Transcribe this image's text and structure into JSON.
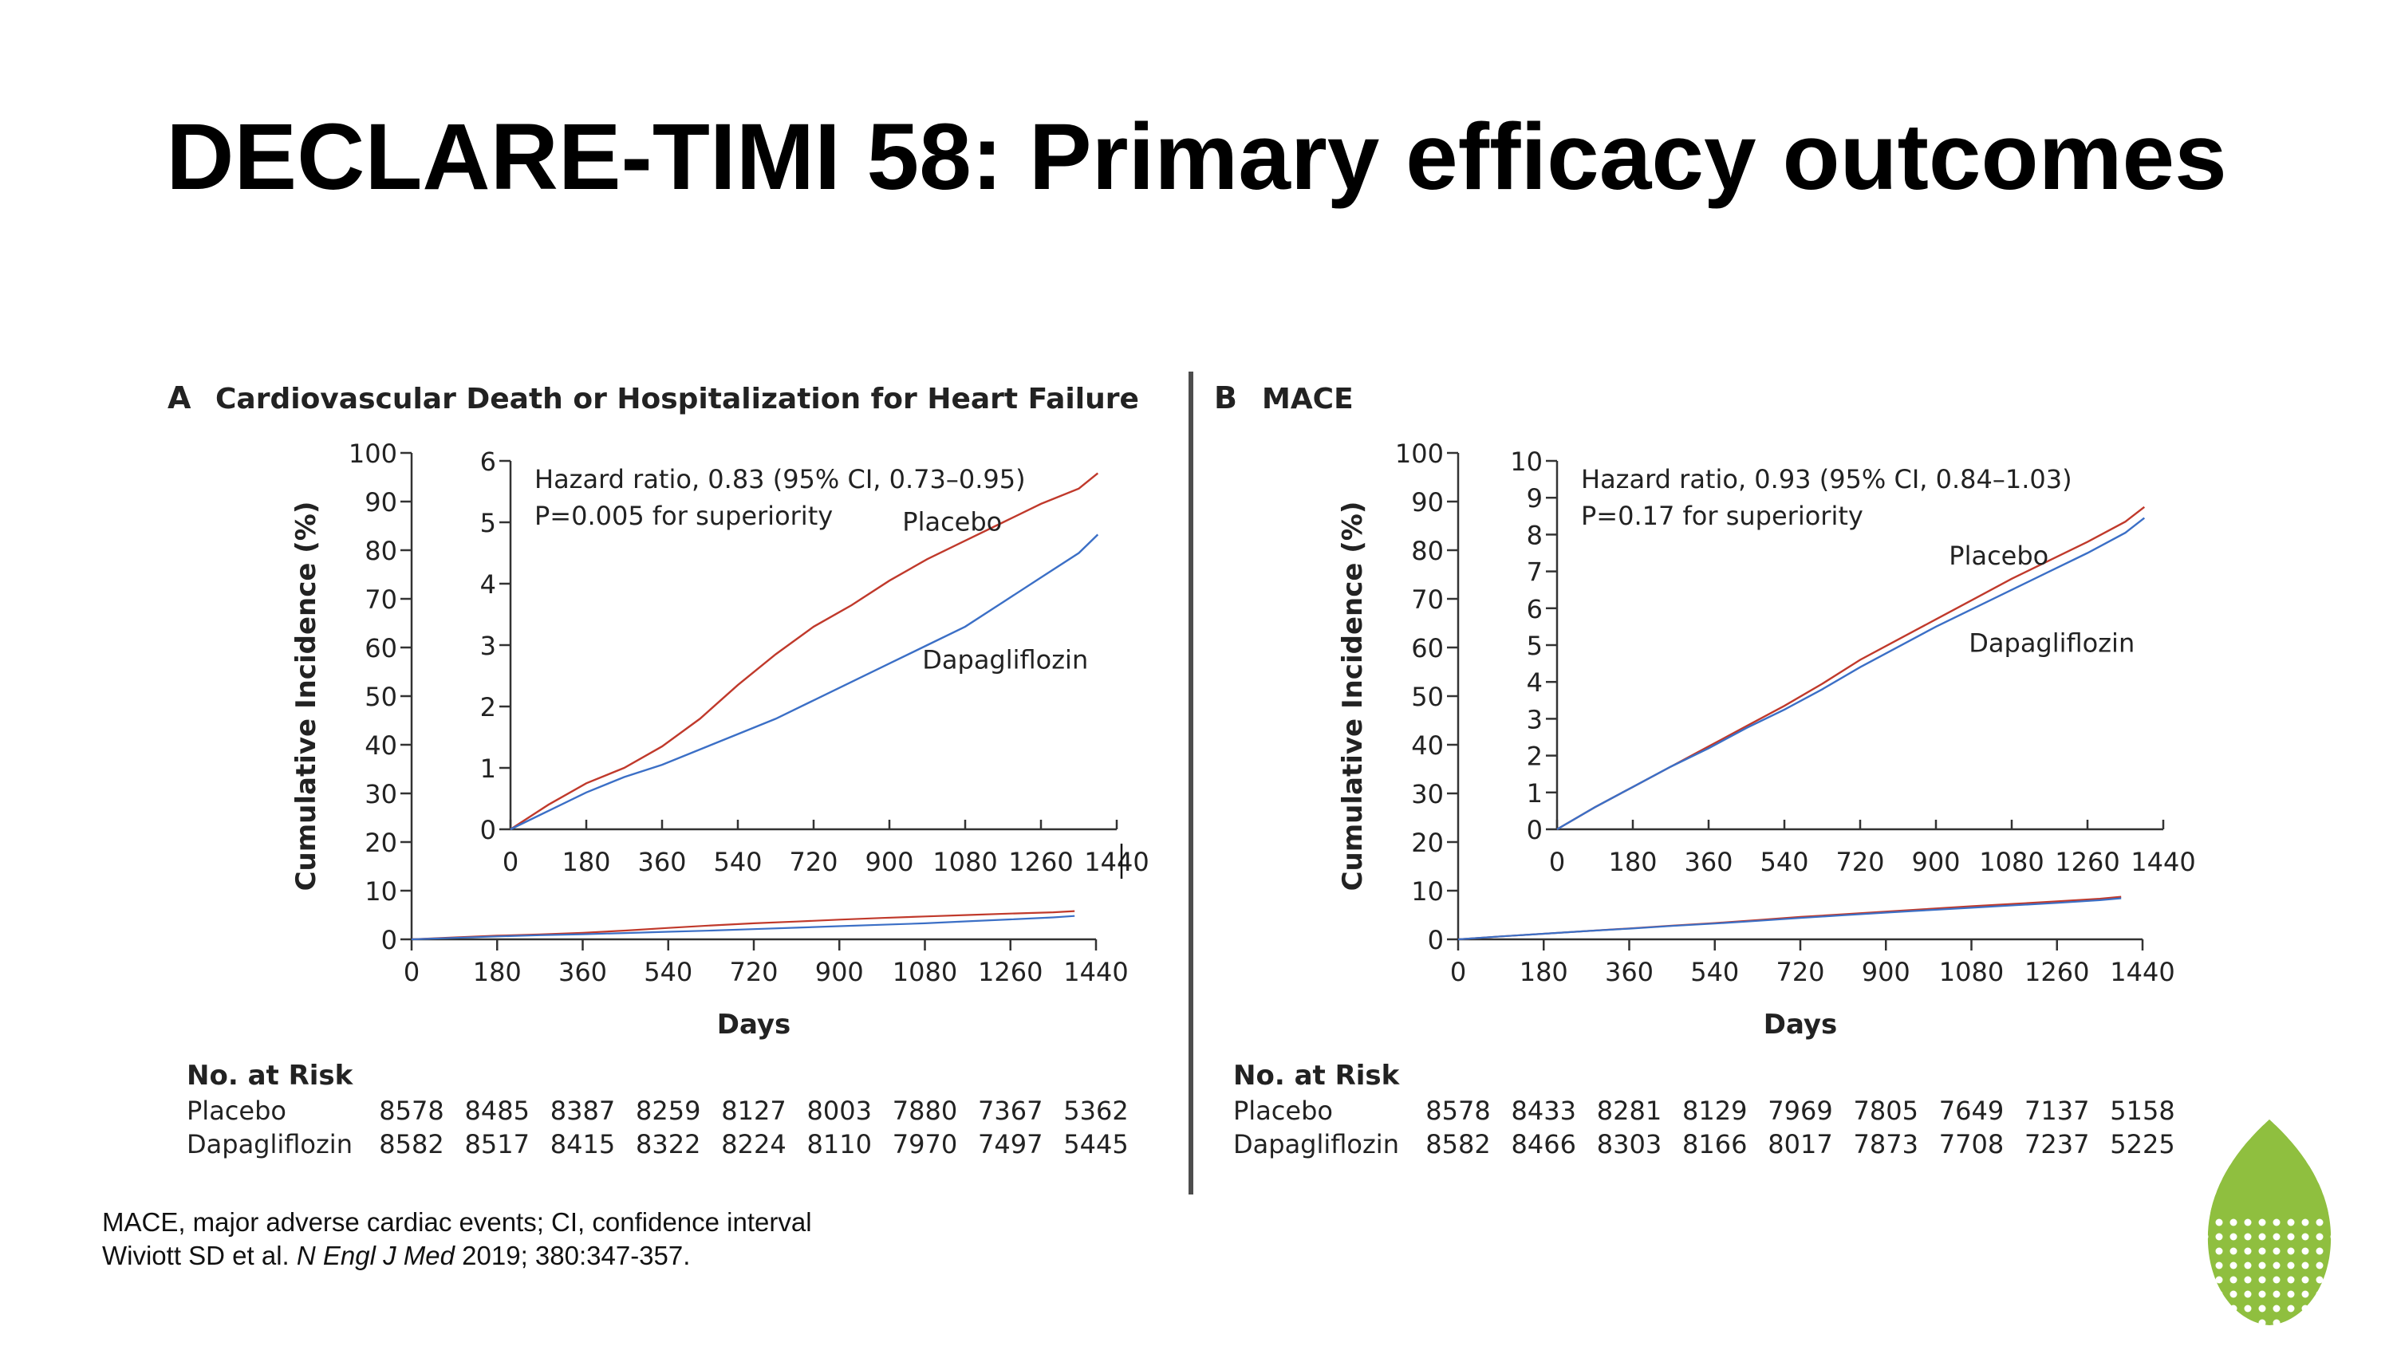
{
  "title": "DECLARE-TIMI 58: Primary efficacy outcomes",
  "colors": {
    "placebo": "#c0392b",
    "dapagliflozin": "#3b6fc6",
    "axis": "#333333",
    "logo": "#8fbf3f"
  },
  "chart_data": [
    {
      "type": "line",
      "panel_letter": "A",
      "title": "Cardiovascular Death or Hospitalization for Heart Failure",
      "xlabel": "Days",
      "ylabel": "Cumulative Incidence (%)",
      "xlim": [
        0,
        1440
      ],
      "ylim": [
        0,
        100
      ],
      "xticks": [
        0,
        180,
        360,
        540,
        720,
        900,
        1080,
        1260,
        1440
      ],
      "yticks": [
        0,
        10,
        20,
        30,
        40,
        50,
        60,
        70,
        80,
        90,
        100
      ],
      "inset": {
        "xlim": [
          0,
          1440
        ],
        "ylim": [
          0,
          6
        ],
        "xticks": [
          0,
          180,
          360,
          540,
          720,
          900,
          1080,
          1260,
          1440
        ],
        "yticks": [
          0,
          1,
          2,
          3,
          4,
          5,
          6
        ],
        "annotation": [
          "Hazard ratio, 0.83 (95% CI, 0.73–0.95)",
          "P=0.005 for superiority"
        ]
      },
      "series": [
        {
          "name": "Placebo",
          "color_key": "placebo",
          "x": [
            0,
            90,
            180,
            270,
            360,
            450,
            540,
            630,
            720,
            810,
            900,
            990,
            1080,
            1170,
            1260,
            1350,
            1395
          ],
          "y": [
            0,
            0.4,
            0.75,
            1.0,
            1.35,
            1.8,
            2.35,
            2.85,
            3.3,
            3.65,
            4.05,
            4.4,
            4.7,
            5.0,
            5.3,
            5.55,
            5.8
          ]
        },
        {
          "name": "Dapagliflozin",
          "color_key": "dapagliflozin",
          "x": [
            0,
            90,
            180,
            270,
            360,
            450,
            540,
            630,
            720,
            810,
            900,
            990,
            1080,
            1170,
            1260,
            1350,
            1395
          ],
          "y": [
            0,
            0.3,
            0.6,
            0.85,
            1.05,
            1.3,
            1.55,
            1.8,
            2.1,
            2.4,
            2.7,
            3.0,
            3.3,
            3.7,
            4.1,
            4.5,
            4.8
          ]
        }
      ],
      "risk_table": {
        "heading": "No. at Risk",
        "rows": [
          {
            "label": "Placebo",
            "values": [
              "8578",
              "8485",
              "8387",
              "8259",
              "8127",
              "8003",
              "7880",
              "7367",
              "5362"
            ]
          },
          {
            "label": "Dapagliflozin",
            "values": [
              "8582",
              "8517",
              "8415",
              "8322",
              "8224",
              "8110",
              "7970",
              "7497",
              "5445"
            ]
          }
        ]
      }
    },
    {
      "type": "line",
      "panel_letter": "B",
      "title": "MACE",
      "xlabel": "Days",
      "ylabel": "Cumulative Incidence (%)",
      "xlim": [
        0,
        1440
      ],
      "ylim": [
        0,
        100
      ],
      "xticks": [
        0,
        180,
        360,
        540,
        720,
        900,
        1080,
        1260,
        1440
      ],
      "yticks": [
        0,
        10,
        20,
        30,
        40,
        50,
        60,
        70,
        80,
        90,
        100
      ],
      "inset": {
        "xlim": [
          0,
          1440
        ],
        "ylim": [
          0,
          10
        ],
        "xticks": [
          0,
          180,
          360,
          540,
          720,
          900,
          1080,
          1260,
          1440
        ],
        "yticks": [
          0,
          1,
          2,
          3,
          4,
          5,
          6,
          7,
          8,
          9,
          10
        ],
        "annotation": [
          "Hazard ratio, 0.93 (95% CI, 0.84–1.03)",
          "P=0.17 for superiority"
        ]
      },
      "series": [
        {
          "name": "Placebo",
          "color_key": "placebo",
          "x": [
            0,
            90,
            180,
            270,
            360,
            450,
            540,
            630,
            720,
            810,
            900,
            990,
            1080,
            1170,
            1260,
            1350,
            1395
          ],
          "y": [
            0,
            0.6,
            1.15,
            1.7,
            2.25,
            2.8,
            3.35,
            3.95,
            4.6,
            5.15,
            5.7,
            6.25,
            6.8,
            7.3,
            7.8,
            8.35,
            8.75
          ]
        },
        {
          "name": "Dapagliflozin",
          "color_key": "dapagliflozin",
          "x": [
            0,
            90,
            180,
            270,
            360,
            450,
            540,
            630,
            720,
            810,
            900,
            990,
            1080,
            1170,
            1260,
            1350,
            1395
          ],
          "y": [
            0,
            0.6,
            1.15,
            1.7,
            2.2,
            2.75,
            3.25,
            3.8,
            4.4,
            4.95,
            5.5,
            6.0,
            6.5,
            7.0,
            7.5,
            8.05,
            8.45
          ]
        }
      ],
      "risk_table": {
        "heading": "No. at Risk",
        "rows": [
          {
            "label": "Placebo",
            "values": [
              "8578",
              "8433",
              "8281",
              "8129",
              "7969",
              "7805",
              "7649",
              "7137",
              "5158"
            ]
          },
          {
            "label": "Dapagliflozin",
            "values": [
              "8582",
              "8466",
              "8303",
              "8166",
              "8017",
              "7873",
              "7708",
              "7237",
              "5225"
            ]
          }
        ]
      }
    }
  ],
  "footnote": {
    "line1": "MACE, major adverse cardiac events; CI, confidence interval",
    "ref_authors": "Wiviott SD et al. ",
    "ref_journal": "N Engl J Med",
    "ref_rest": " 2019; 380:347-357."
  }
}
